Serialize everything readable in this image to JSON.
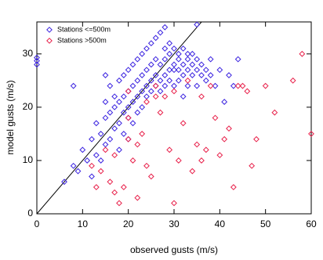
{
  "chart_data": {
    "type": "scatter",
    "xlabel": "observed gusts (m/s)",
    "ylabel": "model gusts (m/s)",
    "xlim": [
      0,
      60
    ],
    "ylim": [
      0,
      36
    ],
    "xticks": [
      0,
      10,
      20,
      30,
      40,
      50,
      60
    ],
    "yticks": [
      0,
      10,
      20,
      30
    ],
    "legend": "upper left",
    "series": [
      {
        "name": "Stations <=500m",
        "color": "#3a22e0",
        "x": [
          0,
          0,
          0,
          6,
          8,
          9,
          10,
          11,
          12,
          12,
          13,
          13,
          14,
          14,
          15,
          15,
          15,
          16,
          16,
          16,
          17,
          17,
          17,
          18,
          18,
          18,
          18,
          19,
          19,
          19,
          19,
          20,
          20,
          20,
          20,
          20,
          21,
          21,
          21,
          21,
          22,
          22,
          22,
          22,
          23,
          23,
          23,
          23,
          24,
          24,
          24,
          24,
          25,
          25,
          25,
          25,
          26,
          26,
          26,
          26,
          27,
          27,
          27,
          27,
          28,
          28,
          28,
          28,
          29,
          29,
          29,
          29,
          30,
          30,
          30,
          30,
          31,
          31,
          31,
          31,
          32,
          32,
          32,
          32,
          33,
          33,
          33,
          33,
          34,
          34,
          34,
          35,
          35,
          35,
          36,
          36,
          37,
          37,
          38,
          38,
          39,
          40,
          41,
          42,
          43,
          44,
          8,
          15,
          28,
          35
        ],
        "values": [
          28,
          28.7,
          29.3,
          6,
          9,
          8,
          12,
          10,
          14,
          7,
          11,
          17,
          15,
          10,
          18,
          13,
          21,
          19,
          14,
          24,
          20,
          16,
          22,
          21,
          17,
          25,
          12,
          22,
          19,
          26,
          15,
          23,
          20,
          27,
          18,
          14,
          24,
          21,
          28,
          17,
          25,
          22,
          29,
          19,
          26,
          23,
          30,
          20,
          27,
          24,
          31,
          22,
          28,
          25,
          32,
          23,
          29,
          26,
          33,
          24,
          28,
          25,
          34,
          23,
          29,
          26,
          31,
          24,
          30,
          27,
          32,
          25,
          31,
          28,
          27,
          24,
          30,
          27,
          29,
          25,
          31,
          28,
          26,
          22,
          30,
          27,
          29,
          24,
          28,
          30,
          26,
          29,
          27,
          24,
          26,
          28,
          27,
          25,
          29,
          26,
          24,
          27,
          21,
          26,
          24,
          29,
          24,
          26,
          35,
          35.5
        ]
      },
      {
        "name": "Stations >500m",
        "color": "#e8204a",
        "x": [
          12,
          13,
          14,
          15,
          16,
          17,
          18,
          19,
          20,
          20,
          21,
          22,
          23,
          24,
          24,
          25,
          26,
          27,
          28,
          29,
          30,
          31,
          32,
          33,
          34,
          35,
          36,
          37,
          38,
          39,
          40,
          41,
          42,
          43,
          45,
          46,
          47,
          48,
          50,
          52,
          56,
          58,
          60,
          17,
          22,
          26,
          30,
          36,
          44,
          20
        ],
        "values": [
          9,
          5,
          8,
          12,
          6,
          11,
          2,
          5,
          14,
          18,
          10,
          13,
          15,
          9,
          21,
          7,
          24,
          19,
          22,
          12,
          23,
          10,
          17,
          25,
          8,
          13,
          22,
          12,
          24,
          18,
          11,
          14,
          16,
          5,
          24,
          23,
          9,
          14,
          24,
          19,
          25,
          30,
          15,
          4,
          3,
          22,
          2,
          10,
          24,
          23
        ]
      }
    ]
  }
}
